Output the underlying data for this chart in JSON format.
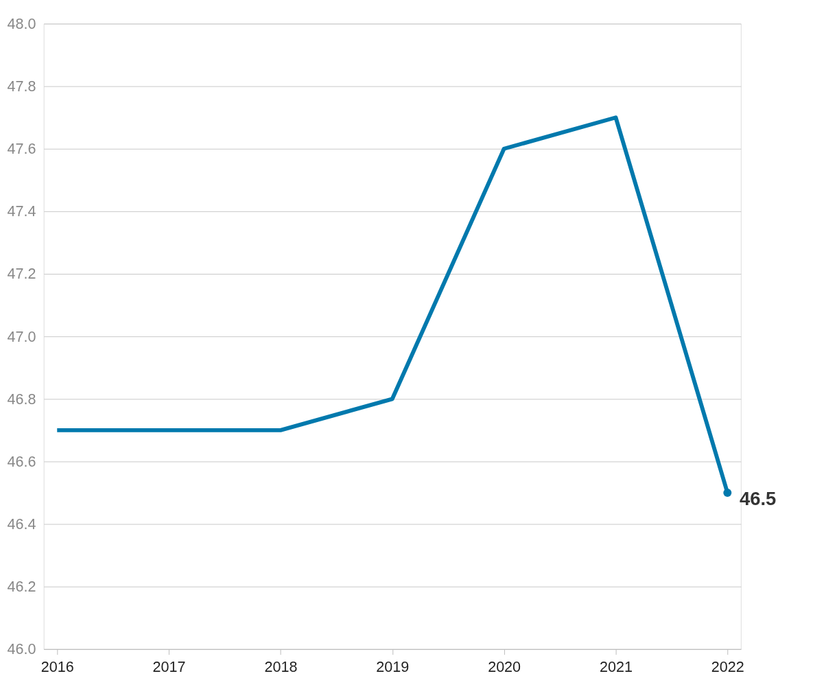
{
  "chart_data": {
    "type": "line",
    "categories": [
      "2016",
      "2017",
      "2018",
      "2019",
      "2020",
      "2021",
      "2022"
    ],
    "series": [
      {
        "color": "#0079ad",
        "values": [
          46.7,
          46.7,
          46.7,
          46.8,
          47.6,
          47.7,
          46.5
        ],
        "value_labels": [
          null,
          null,
          null,
          null,
          null,
          null,
          "46.5"
        ]
      }
    ],
    "ylim": [
      46.0,
      48.0
    ],
    "yticks": [
      {
        "value": 46.0,
        "label": "46.0"
      },
      46.2,
      46.4,
      46.6,
      46.8,
      {
        "value": 47.0,
        "label": "47.0"
      },
      47.2,
      47.4,
      47.6,
      47.8,
      {
        "value": 48.0,
        "label": "48.0"
      }
    ],
    "grid": "y",
    "marker": "none",
    "line_style": "solid"
  }
}
